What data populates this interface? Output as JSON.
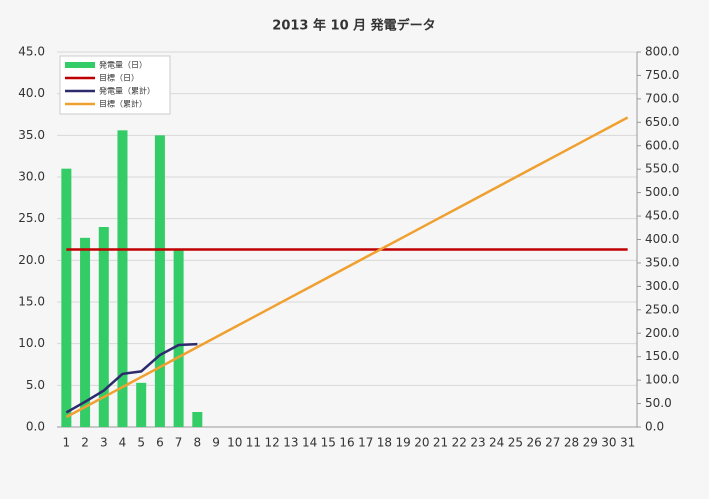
{
  "chart_data": {
    "type": "combo",
    "title": "2013 年 10 月 発電データ",
    "categories": [
      "1",
      "2",
      "3",
      "4",
      "5",
      "6",
      "7",
      "8",
      "9",
      "10",
      "11",
      "12",
      "13",
      "14",
      "15",
      "16",
      "17",
      "18",
      "19",
      "20",
      "21",
      "22",
      "23",
      "24",
      "25",
      "26",
      "27",
      "28",
      "29",
      "30",
      "31"
    ],
    "series": [
      {
        "name": "発電量（日）",
        "type": "bar",
        "color": "#33cc66",
        "values": [
          31.0,
          22.7,
          24.0,
          35.6,
          5.3,
          35.0,
          21.3,
          1.8,
          null,
          null,
          null,
          null,
          null,
          null,
          null,
          null,
          null,
          null,
          null,
          null,
          null,
          null,
          null,
          null,
          null,
          null,
          null,
          null,
          null,
          null,
          null
        ]
      },
      {
        "name": "目標（日）",
        "type": "line",
        "color": "#c00000",
        "values": [
          21.3,
          21.3,
          21.3,
          21.3,
          21.3,
          21.3,
          21.3,
          21.3,
          21.3,
          21.3,
          21.3,
          21.3,
          21.3,
          21.3,
          21.3,
          21.3,
          21.3,
          21.3,
          21.3,
          21.3,
          21.3,
          21.3,
          21.3,
          21.3,
          21.3,
          21.3,
          21.3,
          21.3,
          21.3,
          21.3,
          21.3
        ]
      },
      {
        "name": "発電量（累計）",
        "type": "line",
        "color": "#2e2a6e",
        "axis": "y2",
        "values": [
          31.0,
          53.7,
          77.7,
          113.3,
          118.6,
          153.6,
          174.9,
          176.7,
          null,
          null,
          null,
          null,
          null,
          null,
          null,
          null,
          null,
          null,
          null,
          null,
          null,
          null,
          null,
          null,
          null,
          null,
          null,
          null,
          null,
          null,
          null
        ]
      },
      {
        "name": "目標（累計）",
        "type": "line",
        "color": "#f0a030",
        "axis": "y2",
        "values": [
          21.3,
          42.6,
          63.9,
          85.2,
          106.5,
          127.8,
          149.1,
          170.4,
          191.7,
          213.0,
          234.3,
          255.6,
          276.9,
          298.2,
          319.5,
          340.8,
          362.1,
          383.4,
          404.7,
          426.0,
          447.3,
          468.6,
          489.9,
          511.2,
          532.5,
          553.8,
          575.1,
          596.4,
          617.7,
          639.0,
          660.3
        ]
      }
    ],
    "ylim": [
      0,
      45
    ],
    "yticks": [
      {
        "value": 0,
        "label": "0.0"
      },
      {
        "value": 5,
        "label": "5.0"
      },
      {
        "value": 10,
        "label": "10.0"
      },
      {
        "value": 15,
        "label": "15.0"
      },
      {
        "value": 20,
        "label": "20.0"
      },
      {
        "value": 25,
        "label": "25.0"
      },
      {
        "value": 30,
        "label": "30.0"
      },
      {
        "value": 35,
        "label": "35.0"
      },
      {
        "value": 40,
        "label": "40.0"
      },
      {
        "value": 45,
        "label": "45.0"
      }
    ],
    "y2lim": [
      0,
      800
    ],
    "y2ticks": [
      {
        "value": 0,
        "label": "0.0"
      },
      {
        "value": 50,
        "label": "50.0"
      },
      {
        "value": 100,
        "label": "100.0"
      },
      {
        "value": 150,
        "label": "150.0"
      },
      {
        "value": 200,
        "label": "200.0"
      },
      {
        "value": 250,
        "label": "250.0"
      },
      {
        "value": 300,
        "label": "300.0"
      },
      {
        "value": 350,
        "label": "350.0"
      },
      {
        "value": 400,
        "label": "400.0"
      },
      {
        "value": 450,
        "label": "450.0"
      },
      {
        "value": 500,
        "label": "500.0"
      },
      {
        "value": 550,
        "label": "550.0"
      },
      {
        "value": 600,
        "label": "600.0"
      },
      {
        "value": 650,
        "label": "650.0"
      },
      {
        "value": 700,
        "label": "700.0"
      },
      {
        "value": 750,
        "label": "750.0"
      },
      {
        "value": 800,
        "label": "800.0"
      }
    ],
    "grid": true,
    "legend": "top-left"
  }
}
